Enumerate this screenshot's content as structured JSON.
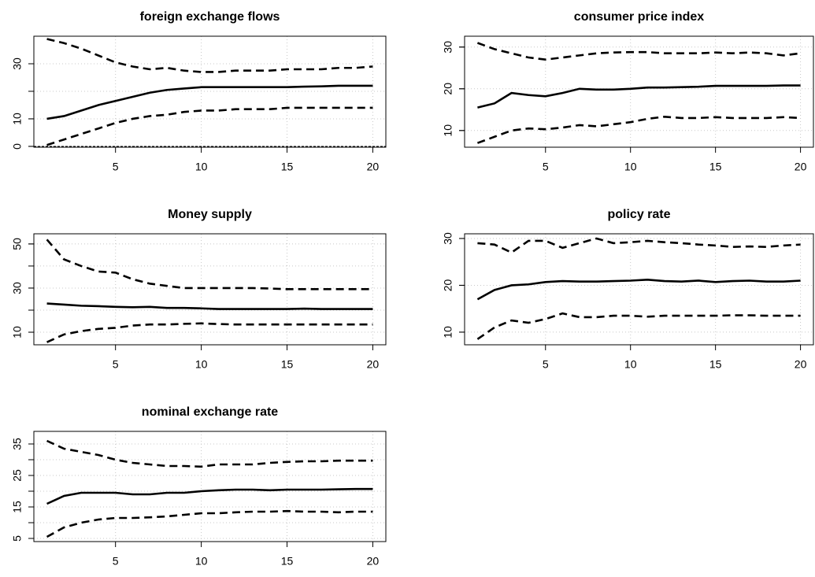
{
  "chart_data": [
    {
      "type": "line",
      "title": "foreign exchange flows",
      "x": [
        1,
        2,
        3,
        4,
        5,
        6,
        7,
        8,
        9,
        10,
        11,
        12,
        13,
        14,
        15,
        16,
        17,
        18,
        19,
        20
      ],
      "xlim": [
        0.24,
        20.76
      ],
      "xticks": [
        5,
        10,
        15,
        20
      ],
      "ylim": [
        -0.3,
        40
      ],
      "yticks": [
        0,
        10,
        30
      ],
      "ygrid": [
        0,
        10,
        20,
        30
      ],
      "grid": true,
      "hline": 0,
      "series": [
        {
          "color": "#000000",
          "linestyle": "dashed",
          "values": [
            39,
            37.5,
            35.5,
            33,
            30.5,
            29,
            28,
            28.5,
            27.5,
            27,
            27,
            27.5,
            27.5,
            27.5,
            28,
            28,
            28,
            28.5,
            28.5,
            29
          ]
        },
        {
          "color": "#000000",
          "linestyle": "solid",
          "values": [
            10,
            11,
            13,
            15,
            16.5,
            18,
            19.5,
            20.5,
            21,
            21.5,
            21.5,
            21.5,
            21.5,
            21.5,
            21.5,
            21.7,
            21.8,
            22,
            22,
            22
          ]
        },
        {
          "color": "#000000",
          "linestyle": "dashed",
          "values": [
            0.5,
            2.5,
            4.5,
            6.5,
            8.5,
            10,
            11,
            11.5,
            12.5,
            13,
            13,
            13.5,
            13.5,
            13.5,
            14,
            14,
            14,
            14,
            14,
            14
          ]
        }
      ]
    },
    {
      "type": "line",
      "title": "consumer price index",
      "x": [
        1,
        2,
        3,
        4,
        5,
        6,
        7,
        8,
        9,
        10,
        11,
        12,
        13,
        14,
        15,
        16,
        17,
        18,
        19,
        20
      ],
      "xlim": [
        0.24,
        20.76
      ],
      "xticks": [
        5,
        10,
        15,
        20
      ],
      "ylim": [
        6,
        32.6
      ],
      "yticks": [
        10,
        20,
        30
      ],
      "ygrid": [
        10,
        20,
        30
      ],
      "grid": true,
      "series": [
        {
          "color": "#000000",
          "linestyle": "dashed",
          "values": [
            31,
            29.5,
            28.5,
            27.5,
            27,
            27.5,
            28,
            28.5,
            28.7,
            28.8,
            28.8,
            28.5,
            28.5,
            28.5,
            28.7,
            28.5,
            28.7,
            28.5,
            28,
            28.5
          ]
        },
        {
          "color": "#000000",
          "linestyle": "solid",
          "values": [
            15.5,
            16.5,
            19,
            18.5,
            18.2,
            19,
            20,
            19.8,
            19.8,
            20,
            20.3,
            20.3,
            20.4,
            20.5,
            20.7,
            20.7,
            20.7,
            20.7,
            20.8,
            20.8
          ]
        },
        {
          "color": "#000000",
          "linestyle": "dashed",
          "values": [
            7,
            8.5,
            10,
            10.5,
            10.3,
            10.7,
            11.3,
            11,
            11.5,
            12,
            12.8,
            13.3,
            13,
            13,
            13.2,
            13,
            13,
            13,
            13.2,
            13
          ]
        }
      ]
    },
    {
      "type": "line",
      "title": "Money supply",
      "x": [
        1,
        2,
        3,
        4,
        5,
        6,
        7,
        8,
        9,
        10,
        11,
        12,
        13,
        14,
        15,
        16,
        17,
        18,
        19,
        20
      ],
      "xlim": [
        0.24,
        20.76
      ],
      "xticks": [
        5,
        10,
        15,
        20
      ],
      "ylim": [
        4.3,
        54.6
      ],
      "yticks": [
        10,
        30,
        50
      ],
      "ygrid": [
        10,
        20,
        30,
        40,
        50
      ],
      "grid": true,
      "series": [
        {
          "color": "#000000",
          "linestyle": "dashed",
          "values": [
            52,
            43,
            40,
            37.5,
            37,
            34,
            32,
            31,
            30,
            30,
            30,
            30,
            30,
            29.8,
            29.5,
            29.5,
            29.5,
            29.5,
            29.5,
            29.5
          ]
        },
        {
          "color": "#000000",
          "linestyle": "solid",
          "values": [
            23,
            22.5,
            22,
            21.8,
            21.5,
            21.3,
            21.5,
            21,
            21,
            20.8,
            20.5,
            20.5,
            20.5,
            20.5,
            20.5,
            20.7,
            20.5,
            20.5,
            20.5,
            20.5
          ]
        },
        {
          "color": "#000000",
          "linestyle": "dashed",
          "values": [
            5.5,
            9,
            10.5,
            11.5,
            12,
            13,
            13.5,
            13.5,
            13.8,
            14,
            13.7,
            13.5,
            13.5,
            13.5,
            13.5,
            13.5,
            13.5,
            13.5,
            13.5,
            13.5
          ]
        }
      ]
    },
    {
      "type": "line",
      "title": "policy rate",
      "x": [
        1,
        2,
        3,
        4,
        5,
        6,
        7,
        8,
        9,
        10,
        11,
        12,
        13,
        14,
        15,
        16,
        17,
        18,
        19,
        20
      ],
      "xlim": [
        0.24,
        20.76
      ],
      "xticks": [
        5,
        10,
        15,
        20
      ],
      "ylim": [
        7.3,
        31
      ],
      "yticks": [
        10,
        20,
        30
      ],
      "ygrid": [
        10,
        20,
        30
      ],
      "grid": true,
      "series": [
        {
          "color": "#000000",
          "linestyle": "dashed",
          "values": [
            29,
            28.7,
            27,
            29.5,
            29.5,
            28,
            29,
            30,
            29,
            29.2,
            29.5,
            29.2,
            29,
            28.7,
            28.5,
            28.2,
            28.3,
            28.2,
            28.5,
            28.7
          ]
        },
        {
          "color": "#000000",
          "linestyle": "solid",
          "values": [
            17,
            19,
            20,
            20.2,
            20.7,
            20.9,
            20.8,
            20.8,
            20.9,
            21,
            21.2,
            20.9,
            20.8,
            21,
            20.7,
            20.9,
            21,
            20.8,
            20.8,
            21
          ]
        },
        {
          "color": "#000000",
          "linestyle": "dashed",
          "values": [
            8.5,
            11,
            12.5,
            12,
            12.8,
            14,
            13.2,
            13.2,
            13.5,
            13.5,
            13.3,
            13.5,
            13.5,
            13.5,
            13.5,
            13.6,
            13.6,
            13.5,
            13.5,
            13.5
          ]
        }
      ]
    },
    {
      "type": "line",
      "title": "nominal exchange rate",
      "x": [
        1,
        2,
        3,
        4,
        5,
        6,
        7,
        8,
        9,
        10,
        11,
        12,
        13,
        14,
        15,
        16,
        17,
        18,
        19,
        20
      ],
      "xlim": [
        0.24,
        20.76
      ],
      "xticks": [
        5,
        10,
        15,
        20
      ],
      "ylim": [
        4,
        39
      ],
      "yticks": [
        5,
        15,
        25,
        35
      ],
      "ygrid": [
        5,
        10,
        15,
        20,
        25,
        30,
        35
      ],
      "grid": true,
      "series": [
        {
          "color": "#000000",
          "linestyle": "dashed",
          "values": [
            36,
            33.5,
            32.5,
            31.5,
            30,
            29,
            28.5,
            28,
            28,
            27.8,
            28.5,
            28.5,
            28.5,
            29,
            29.3,
            29.5,
            29.5,
            29.7,
            29.7,
            29.7
          ]
        },
        {
          "color": "#000000",
          "linestyle": "solid",
          "values": [
            16,
            18.5,
            19.5,
            19.5,
            19.5,
            19,
            19,
            19.5,
            19.5,
            20,
            20.3,
            20.5,
            20.5,
            20.3,
            20.5,
            20.5,
            20.5,
            20.6,
            20.7,
            20.7
          ]
        },
        {
          "color": "#000000",
          "linestyle": "dashed",
          "values": [
            5.5,
            8.5,
            10,
            11,
            11.5,
            11.5,
            11.7,
            12,
            12.5,
            13,
            13,
            13.3,
            13.5,
            13.5,
            13.7,
            13.5,
            13.5,
            13.3,
            13.5,
            13.5
          ]
        }
      ]
    }
  ]
}
